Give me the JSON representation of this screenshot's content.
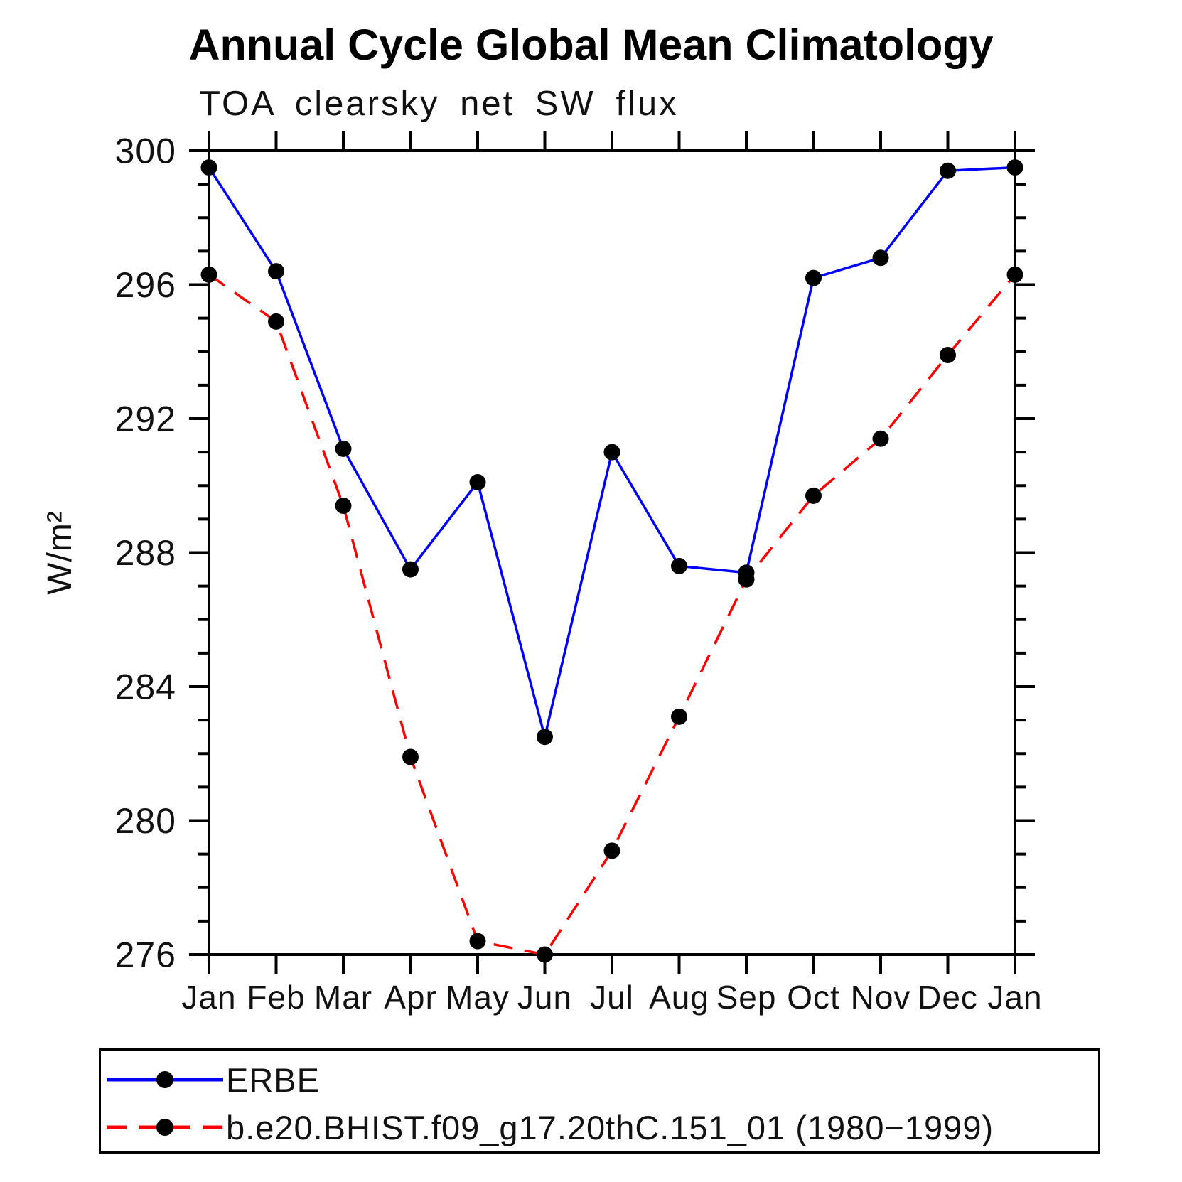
{
  "chart_data": {
    "type": "line",
    "title": "Annual Cycle Global Mean Climatology",
    "subtitle": "TOA clearsky net SW flux",
    "xlabel": "",
    "ylabel": "W/m²",
    "categories": [
      "Jan",
      "Feb",
      "Mar",
      "Apr",
      "May",
      "Jun",
      "Jul",
      "Aug",
      "Sep",
      "Oct",
      "Nov",
      "Dec",
      "Jan"
    ],
    "series": [
      {
        "name": "ERBE",
        "color": "#0000ff",
        "style": "solid",
        "marker": "filled-circle",
        "marker_color": "#000000",
        "values": [
          299.5,
          296.4,
          291.1,
          287.5,
          290.1,
          282.5,
          291.0,
          287.6,
          287.4,
          296.2,
          296.8,
          299.4,
          299.5
        ]
      },
      {
        "name": "b.e20.BHIST.f09_g17.20thC.151_01 (1980−1999)",
        "color": "#ff0000",
        "style": "dashed",
        "marker": "filled-circle",
        "marker_color": "#000000",
        "values": [
          296.3,
          294.9,
          289.4,
          281.9,
          276.4,
          276.0,
          279.1,
          283.1,
          287.2,
          289.7,
          291.4,
          293.9,
          296.3
        ]
      }
    ],
    "ylim": [
      276,
      300
    ],
    "yticks_major": [
      276,
      280,
      284,
      288,
      292,
      296,
      300
    ],
    "ytick_minor_interval": 1,
    "grid": false,
    "legend_position": "bottom-left-box",
    "axis_color": "#000000"
  }
}
